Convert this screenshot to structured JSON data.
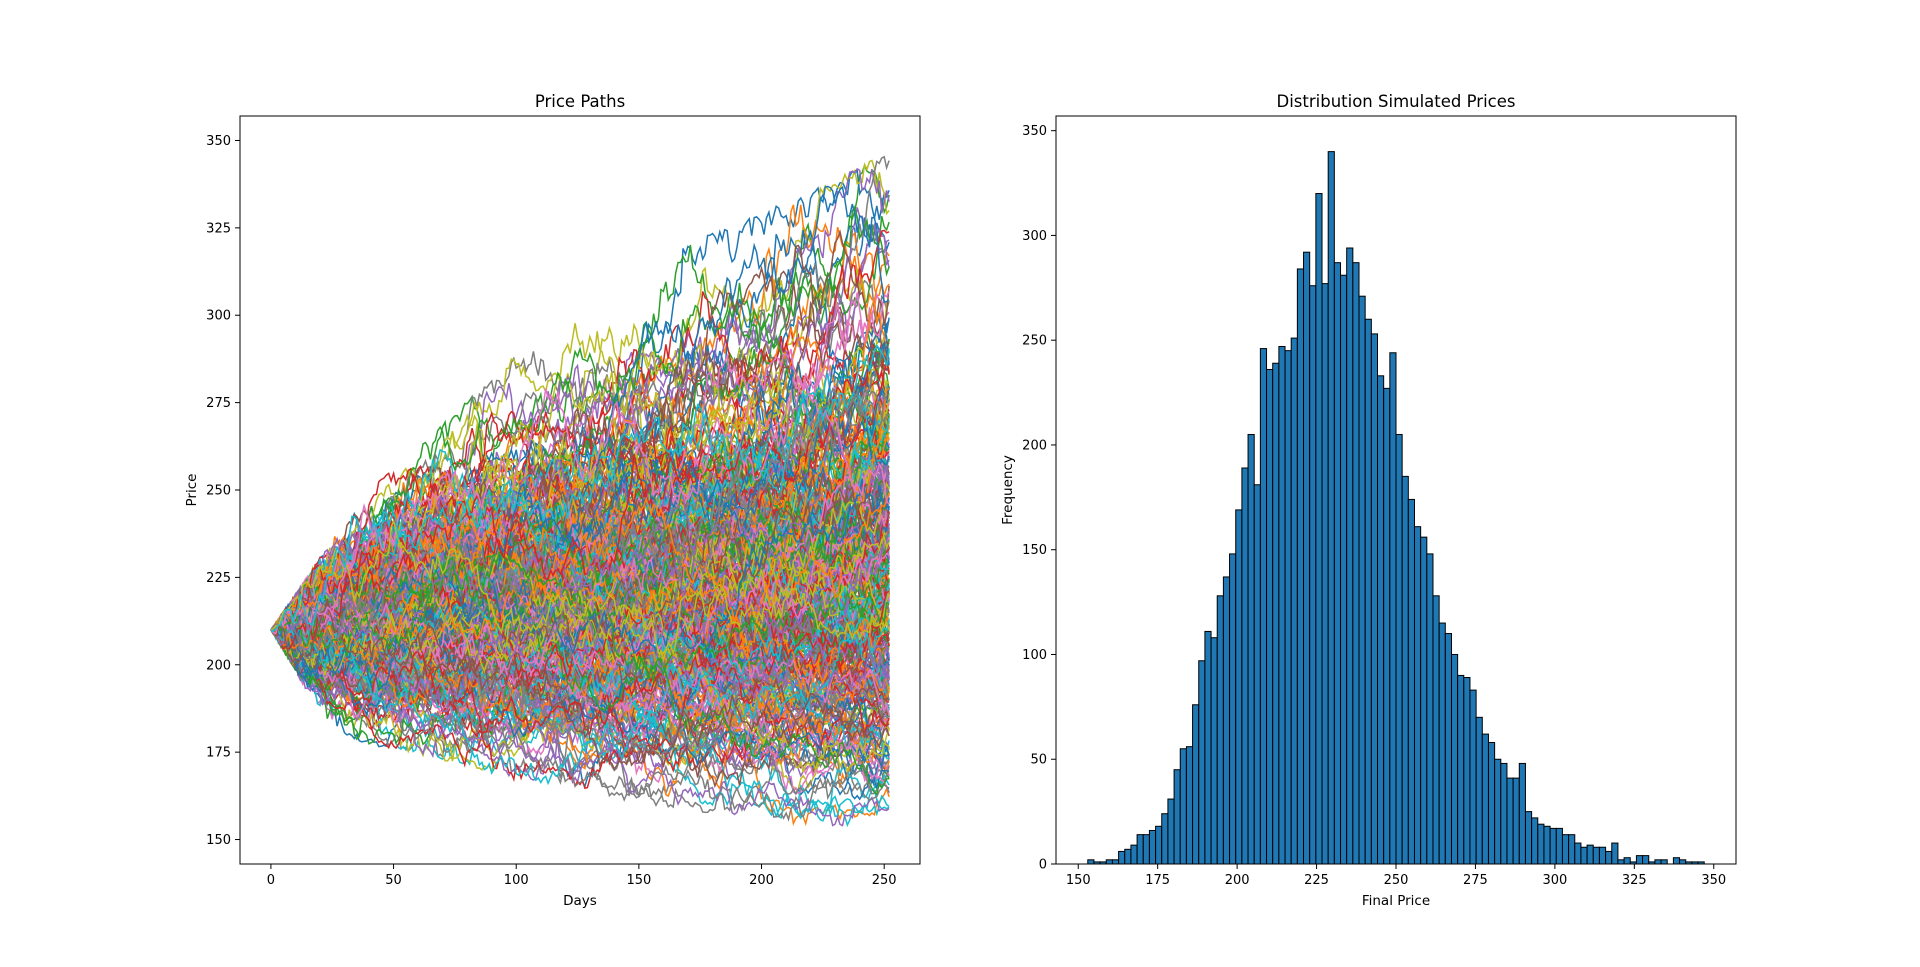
{
  "chart_data": [
    {
      "type": "line",
      "title": "Price Paths",
      "xlabel": "Days",
      "ylabel": "Price",
      "xlim": [
        -12.6,
        264.6
      ],
      "ylim": [
        143,
        357
      ],
      "xticks": [
        0,
        50,
        100,
        150,
        200,
        250
      ],
      "yticks": [
        150,
        175,
        200,
        225,
        250,
        275,
        300,
        325,
        350
      ],
      "x_range": [
        0,
        252
      ],
      "start_price": 210,
      "grid": false,
      "legend": "none",
      "num_paths_shown": 400,
      "final_price_range": [
        153,
        347
      ],
      "envelope": {
        "x": [
          0,
          25,
          50,
          75,
          100,
          125,
          150,
          175,
          200,
          225,
          252
        ],
        "upper": [
          210,
          236,
          258,
          272,
          290,
          300,
          315,
          322,
          330,
          337,
          347
        ],
        "lower": [
          210,
          180,
          175,
          172,
          167,
          165,
          160,
          158,
          155,
          154,
          153
        ]
      },
      "colors": [
        "#1f77b4",
        "#ff7f0e",
        "#2ca02c",
        "#d62728",
        "#9467bd",
        "#8c564b",
        "#e377c2",
        "#7f7f7f",
        "#bcbd22",
        "#17becf"
      ]
    },
    {
      "type": "bar",
      "subtype": "histogram",
      "title": "Distribution Simulated Prices",
      "xlabel": "Final Price",
      "ylabel": "Frequency",
      "xlim": [
        143,
        357
      ],
      "ylim": [
        0,
        357
      ],
      "xticks": [
        150,
        175,
        200,
        225,
        250,
        275,
        300,
        325,
        350
      ],
      "yticks": [
        0,
        50,
        100,
        150,
        200,
        250,
        300,
        350
      ],
      "bin_start": 153,
      "bin_width": 1.94,
      "values": [
        2,
        1,
        1,
        2,
        2,
        6,
        7,
        9,
        14,
        14,
        16,
        18,
        24,
        31,
        45,
        55,
        56,
        76,
        97,
        111,
        108,
        128,
        137,
        148,
        169,
        189,
        205,
        181,
        246,
        236,
        239,
        247,
        245,
        251,
        284,
        292,
        276,
        320,
        277,
        340,
        287,
        281,
        294,
        287,
        271,
        260,
        253,
        233,
        227,
        244,
        205,
        185,
        174,
        161,
        156,
        148,
        128,
        115,
        110,
        100,
        90,
        89,
        83,
        70,
        62,
        58,
        50,
        48,
        41,
        41,
        48,
        25,
        22,
        19,
        18,
        17,
        17,
        14,
        14,
        10,
        8,
        9,
        8,
        8,
        6,
        10,
        2,
        3,
        1,
        4,
        4,
        1,
        2,
        2,
        0,
        3,
        2,
        1,
        1,
        1
      ],
      "bar_color": "#1f77b4",
      "edge_color": "#000000",
      "grid": false,
      "legend": "none"
    }
  ]
}
